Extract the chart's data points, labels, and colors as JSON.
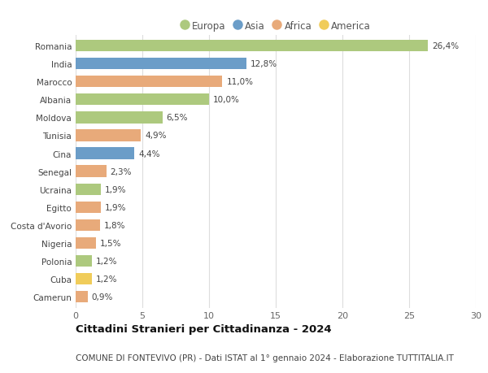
{
  "countries": [
    "Romania",
    "India",
    "Marocco",
    "Albania",
    "Moldova",
    "Tunisia",
    "Cina",
    "Senegal",
    "Ucraina",
    "Egitto",
    "Costa d'Avorio",
    "Nigeria",
    "Polonia",
    "Cuba",
    "Camerun"
  ],
  "values": [
    26.4,
    12.8,
    11.0,
    10.0,
    6.5,
    4.9,
    4.4,
    2.3,
    1.9,
    1.9,
    1.8,
    1.5,
    1.2,
    1.2,
    0.9
  ],
  "labels": [
    "26,4%",
    "12,8%",
    "11,0%",
    "10,0%",
    "6,5%",
    "4,9%",
    "4,4%",
    "2,3%",
    "1,9%",
    "1,9%",
    "1,8%",
    "1,5%",
    "1,2%",
    "1,2%",
    "0,9%"
  ],
  "continents": [
    "Europa",
    "Asia",
    "Africa",
    "Europa",
    "Europa",
    "Africa",
    "Asia",
    "Africa",
    "Europa",
    "Africa",
    "Africa",
    "Africa",
    "Europa",
    "America",
    "Africa"
  ],
  "continent_colors": {
    "Europa": "#adc97e",
    "Asia": "#6b9dc8",
    "Africa": "#e8aa7a",
    "America": "#f0cc5a"
  },
  "legend_order": [
    "Europa",
    "Asia",
    "Africa",
    "America"
  ],
  "title": "Cittadini Stranieri per Cittadinanza - 2024",
  "subtitle": "COMUNE DI FONTEVIVO (PR) - Dati ISTAT al 1° gennaio 2024 - Elaborazione TUTTITALIA.IT",
  "xlim": [
    0,
    30
  ],
  "xticks": [
    0,
    5,
    10,
    15,
    20,
    25,
    30
  ],
  "background_color": "#ffffff",
  "grid_color": "#dddddd",
  "bar_height": 0.65,
  "label_fontsize": 7.5,
  "ytick_fontsize": 7.5,
  "xtick_fontsize": 8,
  "legend_fontsize": 8.5,
  "title_fontsize": 9.5,
  "subtitle_fontsize": 7.5
}
